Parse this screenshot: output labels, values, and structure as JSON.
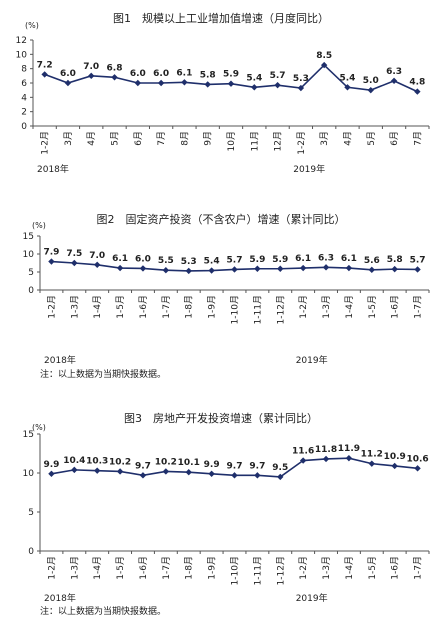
{
  "chart_data": [
    {
      "type": "line",
      "title": "图1　规模以上工业增加值增速（月度同比）",
      "ylabel": "(%)",
      "ylim": [
        0,
        12
      ],
      "yticks": [
        0,
        2,
        4,
        6,
        8,
        10,
        12
      ],
      "categories": [
        "1-2月",
        "3月",
        "4月",
        "5月",
        "6月",
        "7月",
        "8月",
        "9月",
        "10月",
        "11月",
        "12月",
        "1-2月",
        "3月",
        "4月",
        "5月",
        "6月",
        "7月"
      ],
      "values": [
        7.2,
        6.0,
        7.0,
        6.8,
        6.0,
        6.0,
        6.1,
        5.8,
        5.9,
        5.4,
        5.7,
        5.3,
        8.5,
        5.4,
        5.0,
        6.3,
        4.8
      ],
      "value_labels": [
        "7.2",
        "6.0",
        "7.0",
        "6.8",
        "6.0",
        "6.0",
        "6.1",
        "5.8",
        "5.9",
        "5.4",
        "5.7",
        "5.3",
        "8.5",
        "5.4",
        "5.0",
        "6.3",
        "4.8"
      ],
      "year_labels": [
        {
          "text": "2018年",
          "index": 0
        },
        {
          "text": "2019年",
          "index": 11
        }
      ],
      "note": "",
      "color": "#1f2f6b"
    },
    {
      "type": "line",
      "title": "图2　固定资产投资（不含农户）增速（累计同比）",
      "ylabel": "(%)",
      "ylim": [
        0,
        15
      ],
      "yticks": [
        0,
        5,
        10,
        15
      ],
      "categories": [
        "1-2月",
        "1-3月",
        "1-4月",
        "1-5月",
        "1-6月",
        "1-7月",
        "1-8月",
        "1-9月",
        "1-10月",
        "1-11月",
        "1-12月",
        "1-2月",
        "1-3月",
        "1-4月",
        "1-5月",
        "1-6月",
        "1-7月"
      ],
      "values": [
        7.9,
        7.5,
        7.0,
        6.1,
        6.0,
        5.5,
        5.3,
        5.4,
        5.7,
        5.9,
        5.9,
        6.1,
        6.3,
        6.1,
        5.6,
        5.8,
        5.7
      ],
      "value_labels": [
        "7.9",
        "7.5",
        "7.0",
        "6.1",
        "6.0",
        "5.5",
        "5.3",
        "5.4",
        "5.7",
        "5.9",
        "5.9",
        "6.1",
        "6.3",
        "6.1",
        "5.6",
        "5.8",
        "5.7"
      ],
      "year_labels": [
        {
          "text": "2018年",
          "index": 0
        },
        {
          "text": "2019年",
          "index": 11
        }
      ],
      "note": "注：以上数据为当期快报数据。",
      "color": "#1f2f6b"
    },
    {
      "type": "line",
      "title": "图3　房地产开发投资增速（累计同比）",
      "ylabel": "(%)",
      "ylim": [
        0,
        15
      ],
      "yticks": [
        0,
        5,
        10,
        15
      ],
      "categories": [
        "1-2月",
        "1-3月",
        "1-4月",
        "1-5月",
        "1-6月",
        "1-7月",
        "1-8月",
        "1-9月",
        "1-10月",
        "1-11月",
        "1-12月",
        "1-2月",
        "1-3月",
        "1-4月",
        "1-5月",
        "1-6月",
        "1-7月"
      ],
      "values": [
        9.9,
        10.4,
        10.3,
        10.2,
        9.7,
        10.2,
        10.1,
        9.9,
        9.7,
        9.7,
        9.5,
        11.6,
        11.8,
        11.9,
        11.2,
        10.9,
        10.6
      ],
      "value_labels": [
        "9.9",
        "10.4",
        "10.3",
        "10.2",
        "9.7",
        "10.2",
        "10.1",
        "9.9",
        "9.7",
        "9.7",
        "9.5",
        "11.6",
        "11.8",
        "11.9",
        "11.2",
        "10.9",
        "10.6"
      ],
      "year_labels": [
        {
          "text": "2018年",
          "index": 0
        },
        {
          "text": "2019年",
          "index": 11
        }
      ],
      "note": "注：以上数据为当期快报数据。",
      "color": "#1f2f6b"
    }
  ]
}
